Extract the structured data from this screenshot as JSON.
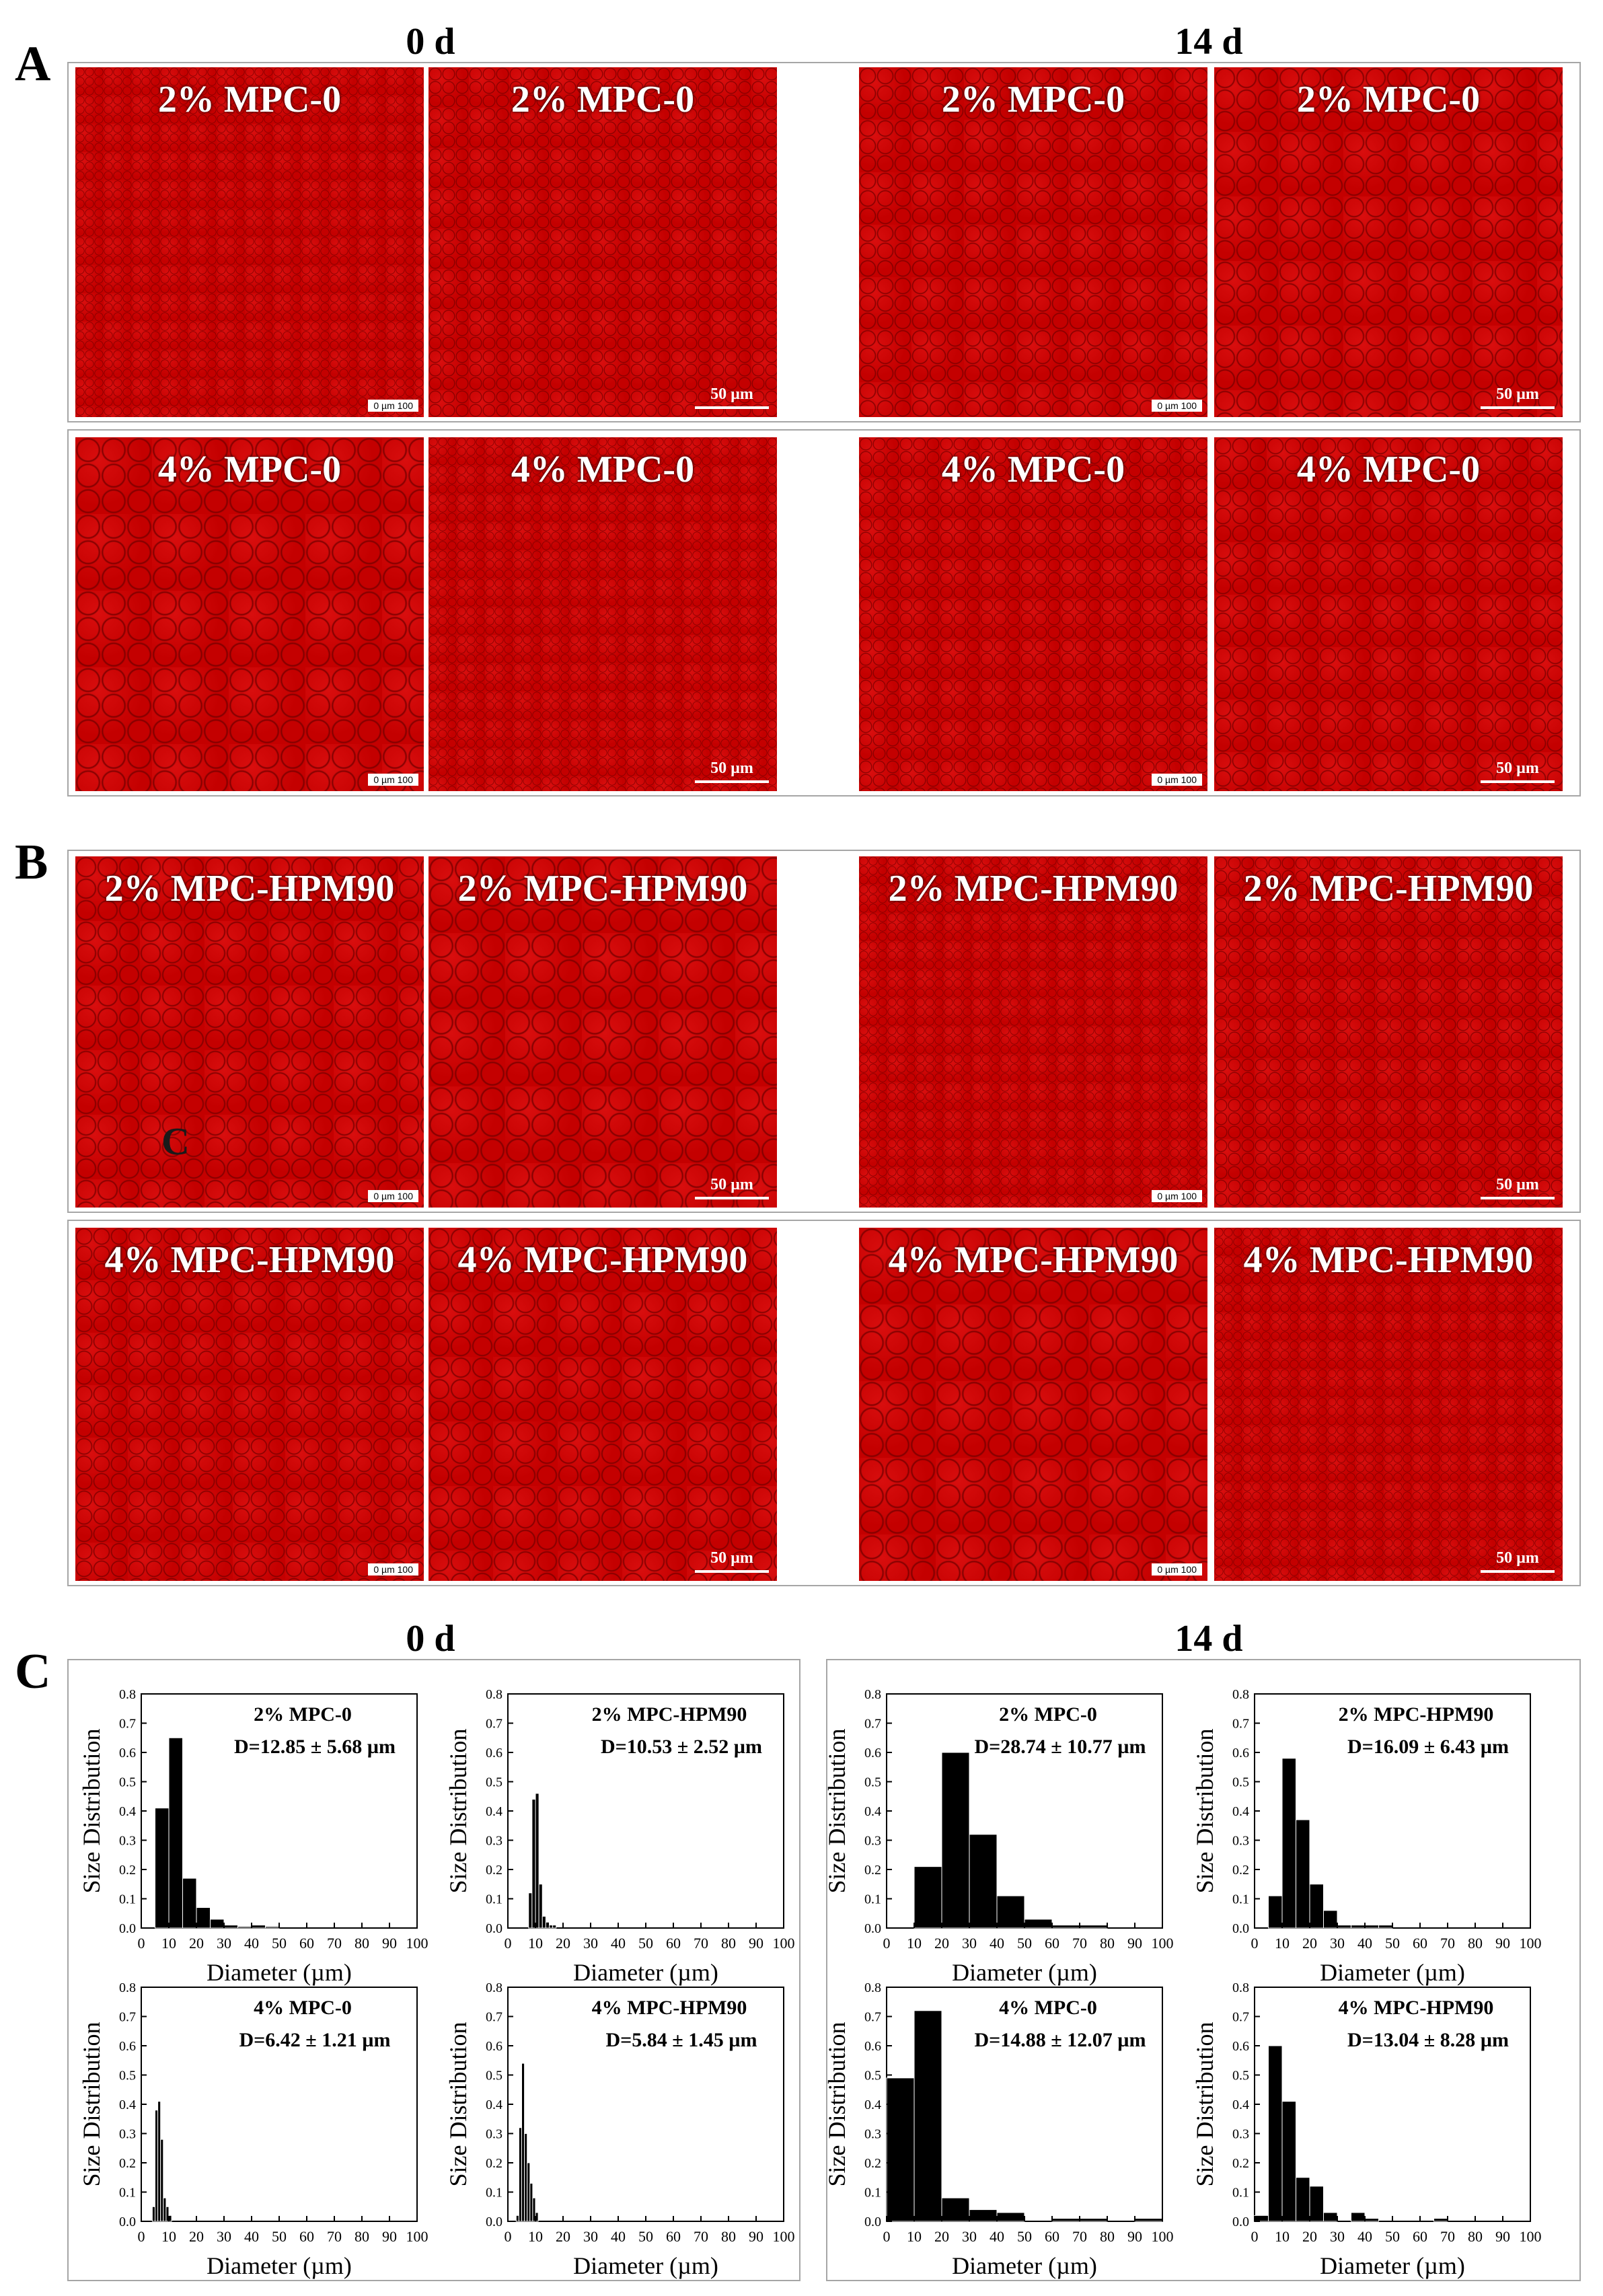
{
  "figure": {
    "A": {
      "letter": "A",
      "time_left": "0 d",
      "time_right": "14 d",
      "rows": [
        {
          "labels": [
            "2% MPC-0",
            "2% MPC-0",
            "2% MPC-0",
            "2% MPC-0"
          ],
          "scales": [
            "0   µm   100",
            "50 µm",
            "0   µm   100",
            "50 µm"
          ]
        },
        {
          "labels": [
            "4% MPC-0",
            "4% MPC-0",
            "4% MPC-0",
            "4% MPC-0"
          ],
          "scales": [
            "0   µm   100",
            "50 µm",
            "0   µm   100",
            "50 µm"
          ]
        }
      ]
    },
    "B": {
      "letter": "B",
      "stray_text": "C",
      "rows": [
        {
          "labels": [
            "2% MPC-HPM90",
            "2% MPC-HPM90",
            "2% MPC-HPM90",
            "2% MPC-HPM90"
          ],
          "scales": [
            "0   µm   100",
            "50 µm",
            "0   µm   100",
            "50 µm"
          ]
        },
        {
          "labels": [
            "4% MPC-HPM90",
            "4% MPC-HPM90",
            "4% MPC-HPM90",
            "4% MPC-HPM90"
          ],
          "scales": [
            "0   µm   100",
            "50 µm",
            "0   µm   100",
            "50 µm"
          ]
        }
      ]
    },
    "C": {
      "letter": "C",
      "time_left": "0 d",
      "time_right": "14 d"
    }
  },
  "chart_data": [
    {
      "type": "bar",
      "group": "0 d",
      "title": "2% MPC-0",
      "stat": "D=12.85 ± 5.68 µm",
      "xlabel": "Diameter (µm)",
      "ylabel": "Size Distribution",
      "bin_width": 5,
      "bin_starts": [
        5,
        10,
        15,
        20,
        25,
        30,
        35,
        40,
        45
      ],
      "values": [
        0.41,
        0.65,
        0.17,
        0.07,
        0.03,
        0.01,
        0.005,
        0.01,
        0.005
      ],
      "xlim": [
        0,
        100
      ],
      "ylim": [
        0,
        0.8
      ],
      "xticks": [
        "0",
        "10",
        "20",
        "30",
        "40",
        "50",
        "60",
        "70",
        "80",
        "90",
        "100"
      ],
      "yticks": [
        "0.0",
        "0.1",
        "0.2",
        "0.3",
        "0.4",
        "0.5",
        "0.6",
        "0.7",
        "0.8"
      ]
    },
    {
      "type": "bar",
      "group": "0 d",
      "title": "2% MPC-HPM90",
      "stat": "D=10.53 ± 2.52 µm",
      "xlabel": "Diameter (µm)",
      "ylabel": "Size Distribution",
      "bin_width": 1.25,
      "bin_starts": [
        7.5,
        8.75,
        10,
        11.25,
        12.5,
        13.75,
        15,
        16.25
      ],
      "values": [
        0.12,
        0.44,
        0.46,
        0.15,
        0.04,
        0.02,
        0.01,
        0.01
      ],
      "xlim": [
        0,
        100
      ],
      "ylim": [
        0,
        0.8
      ],
      "xticks": [
        "0",
        "10",
        "20",
        "30",
        "40",
        "50",
        "60",
        "70",
        "80",
        "90",
        "100"
      ],
      "yticks": [
        "0.0",
        "0.1",
        "0.2",
        "0.3",
        "0.4",
        "0.5",
        "0.6",
        "0.7",
        "0.8"
      ]
    },
    {
      "type": "bar",
      "group": "0 d",
      "title": "4% MPC-0",
      "stat": "D=6.42 ± 1.21 µm",
      "xlabel": "Diameter (µm)",
      "ylabel": "Size Distribution",
      "bin_width": 1,
      "bin_starts": [
        4,
        5,
        6,
        7,
        8,
        9,
        10
      ],
      "values": [
        0.05,
        0.38,
        0.41,
        0.28,
        0.08,
        0.05,
        0.02
      ],
      "xlim": [
        0,
        100
      ],
      "ylim": [
        0,
        0.8
      ],
      "xticks": [
        "0",
        "10",
        "20",
        "30",
        "40",
        "50",
        "60",
        "70",
        "80",
        "90",
        "100"
      ],
      "yticks": [
        "0.0",
        "0.1",
        "0.2",
        "0.3",
        "0.4",
        "0.5",
        "0.6",
        "0.7",
        "0.8"
      ]
    },
    {
      "type": "bar",
      "group": "0 d",
      "title": "4% MPC-HPM90",
      "stat": "D=5.84 ± 1.45 µm",
      "xlabel": "Diameter (µm)",
      "ylabel": "Size Distribution",
      "bin_width": 1,
      "bin_starts": [
        3,
        4,
        5,
        6,
        7,
        8,
        9,
        10
      ],
      "values": [
        0.02,
        0.32,
        0.54,
        0.3,
        0.2,
        0.13,
        0.08,
        0.03
      ],
      "xlim": [
        0,
        100
      ],
      "ylim": [
        0,
        0.8
      ],
      "xticks": [
        "0",
        "10",
        "20",
        "30",
        "40",
        "50",
        "60",
        "70",
        "80",
        "90",
        "100"
      ],
      "yticks": [
        "0.0",
        "0.1",
        "0.2",
        "0.3",
        "0.4",
        "0.5",
        "0.6",
        "0.7",
        "0.8"
      ]
    },
    {
      "type": "bar",
      "group": "14 d",
      "title": "2% MPC-0",
      "stat": "D=28.74 ± 10.77 µm",
      "xlabel": "Diameter (µm)",
      "ylabel": "Size Distribution",
      "bin_width": 10,
      "bin_starts": [
        10,
        20,
        30,
        40,
        50,
        60,
        70
      ],
      "values": [
        0.21,
        0.6,
        0.32,
        0.11,
        0.03,
        0.01,
        0.01
      ],
      "xlim": [
        0,
        100
      ],
      "ylim": [
        0,
        0.8
      ],
      "xticks": [
        "0",
        "10",
        "20",
        "30",
        "40",
        "50",
        "60",
        "70",
        "80",
        "90",
        "100"
      ],
      "yticks": [
        "0.0",
        "0.1",
        "0.2",
        "0.3",
        "0.4",
        "0.5",
        "0.6",
        "0.7",
        "0.8"
      ]
    },
    {
      "type": "bar",
      "group": "14 d",
      "title": "2% MPC-HPM90",
      "stat": "D=16.09 ± 6.43 µm",
      "xlabel": "Diameter (µm)",
      "ylabel": "Size Distribution",
      "bin_width": 5,
      "bin_starts": [
        5,
        10,
        15,
        20,
        25,
        30,
        35,
        40,
        45
      ],
      "values": [
        0.11,
        0.58,
        0.37,
        0.15,
        0.06,
        0.01,
        0.01,
        0.01,
        0.01
      ],
      "xlim": [
        0,
        100
      ],
      "ylim": [
        0,
        0.8
      ],
      "xticks": [
        "0",
        "10",
        "20",
        "30",
        "40",
        "50",
        "60",
        "70",
        "80",
        "90",
        "100"
      ],
      "yticks": [
        "0.0",
        "0.1",
        "0.2",
        "0.3",
        "0.4",
        "0.5",
        "0.6",
        "0.7",
        "0.8"
      ]
    },
    {
      "type": "bar",
      "group": "14 d",
      "title": "4% MPC-0",
      "stat": "D=14.88 ± 12.07 µm",
      "xlabel": "Diameter (µm)",
      "ylabel": "Size Distribution",
      "bin_width": 10,
      "bin_starts": [
        0,
        10,
        20,
        30,
        40,
        60,
        70,
        90
      ],
      "values": [
        0.49,
        0.72,
        0.08,
        0.04,
        0.03,
        0.01,
        0.01,
        0.01
      ],
      "xlim": [
        0,
        100
      ],
      "ylim": [
        0,
        0.8
      ],
      "xticks": [
        "0",
        "10",
        "20",
        "30",
        "40",
        "50",
        "60",
        "70",
        "80",
        "90",
        "100"
      ],
      "yticks": [
        "0.0",
        "0.1",
        "0.2",
        "0.3",
        "0.4",
        "0.5",
        "0.6",
        "0.7",
        "0.8"
      ]
    },
    {
      "type": "bar",
      "group": "14 d",
      "title": "4% MPC-HPM90",
      "stat": "D=13.04 ± 8.28 µm",
      "xlabel": "Diameter (µm)",
      "ylabel": "Size Distribution",
      "bin_width": 5,
      "bin_starts": [
        0,
        5,
        10,
        15,
        20,
        25,
        35,
        40,
        65
      ],
      "values": [
        0.02,
        0.6,
        0.41,
        0.15,
        0.12,
        0.03,
        0.03,
        0.01,
        0.01
      ],
      "xlim": [
        0,
        100
      ],
      "ylim": [
        0,
        0.8
      ],
      "xticks": [
        "0",
        "10",
        "20",
        "30",
        "40",
        "50",
        "60",
        "70",
        "80",
        "90",
        "100"
      ],
      "yticks": [
        "0.0",
        "0.1",
        "0.2",
        "0.3",
        "0.4",
        "0.5",
        "0.6",
        "0.7",
        "0.8"
      ]
    }
  ],
  "colors": {
    "panel_red": "#c40000",
    "panel_red_dark": "#7a0000",
    "bar_fill": "#000000",
    "frame_gray": "#a6a6a6"
  }
}
